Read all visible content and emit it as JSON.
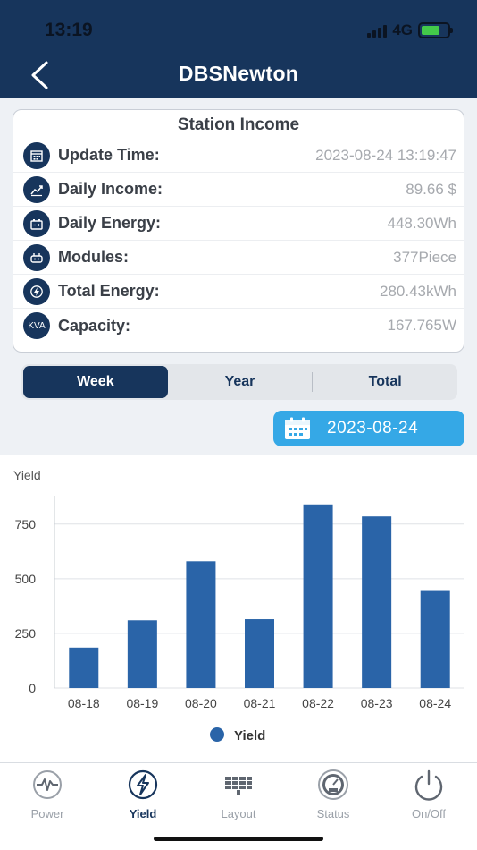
{
  "status_bar": {
    "time": "13:19",
    "network": "4G"
  },
  "header": {
    "title": "DBSNewton"
  },
  "station": {
    "title": "Station Income",
    "rows": [
      {
        "icon": "calendar-icon",
        "label": "Update Time:",
        "value": "2023-08-24 13:19:47"
      },
      {
        "icon": "income-chart-icon",
        "label": "Daily Income:",
        "value": "89.66 $"
      },
      {
        "icon": "battery-icon",
        "label": "Daily Energy:",
        "value": "448.30Wh"
      },
      {
        "icon": "module-icon",
        "label": "Modules:",
        "value": "377Piece"
      },
      {
        "icon": "bolt-icon",
        "label": "Total Energy:",
        "value": "280.43kWh"
      },
      {
        "icon": "kva-icon",
        "label": "Capacity:",
        "value": "167.765W",
        "icon_text": "KVA"
      }
    ]
  },
  "period_tabs": [
    {
      "label": "Week",
      "active": true
    },
    {
      "label": "Year",
      "active": false
    },
    {
      "label": "Total",
      "active": false
    }
  ],
  "date_picker": {
    "value": "2023-08-24"
  },
  "chart_data": {
    "type": "bar",
    "ylabel": "Yield",
    "categories": [
      "08-18",
      "08-19",
      "08-20",
      "08-21",
      "08-22",
      "08-23",
      "08-24"
    ],
    "series": [
      {
        "name": "Yield",
        "values": [
          185,
          310,
          580,
          315,
          840,
          785,
          448
        ]
      }
    ],
    "yticks": [
      0,
      250,
      500,
      750
    ],
    "ylim": [
      0,
      880
    ],
    "grid": true,
    "legend": "bottom-center",
    "color": "#2a64a8"
  },
  "tabbar": [
    {
      "icon": "power-icon",
      "label": "Power",
      "active": false
    },
    {
      "icon": "yield-icon",
      "label": "Yield",
      "active": true
    },
    {
      "icon": "layout-icon",
      "label": "Layout",
      "active": false
    },
    {
      "icon": "status-icon",
      "label": "Status",
      "active": false
    },
    {
      "icon": "onoff-icon",
      "label": "On/Off",
      "active": false
    }
  ],
  "colors": {
    "primary": "#17355c",
    "accent": "#35a8e6",
    "bar": "#2a64a8"
  }
}
